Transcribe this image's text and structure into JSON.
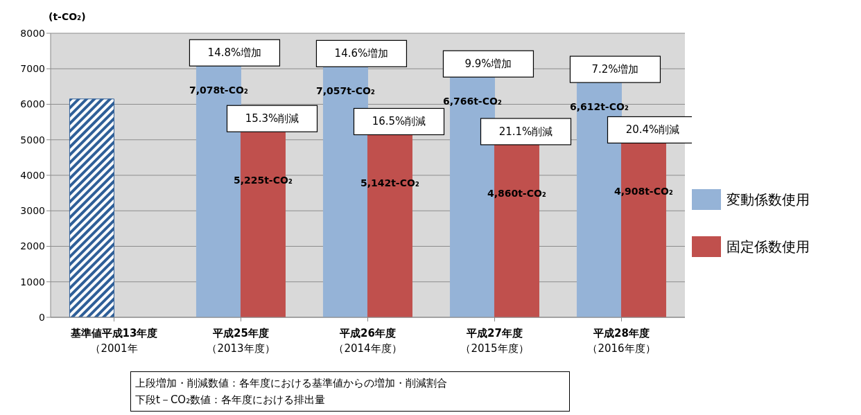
{
  "chart_data": {
    "type": "bar",
    "ylabel": "(t-CO₂)",
    "categories": [
      "基準値平成13年度（2001年",
      "平成25年度（2013年度）",
      "平成26年度（2014年度）",
      "平成27年度（2015年度）",
      "平成28年度（2016年度）"
    ],
    "series": [
      {
        "color": "#2f5f98",
        "values": [
          6150,
          null,
          null,
          null,
          null
        ]
      },
      {
        "name": "変動係数使用",
        "color": "#95b3d7",
        "values": [
          null,
          7078,
          7057,
          6766,
          6612
        ],
        "value_labels": [
          null,
          "7,078t-CO₂",
          "7,057t-CO₂",
          "6,766t-CO₂",
          "6,612t-CO₂"
        ]
      },
      {
        "name": "固定係数使用",
        "color": "#c0504d",
        "values": [
          null,
          5225,
          5142,
          4860,
          4908
        ],
        "value_labels": [
          null,
          "5,225t-CO₂",
          "5,142t-CO₂",
          "4,860t-CO₂",
          "4,908t-CO₂"
        ]
      }
    ],
    "ylim": [
      0,
      8000
    ],
    "yticks": [
      0,
      1000,
      2000,
      3000,
      4000,
      5000,
      6000,
      7000,
      8000
    ],
    "grid": "y",
    "legend": "right",
    "annotations": [
      {
        "text": "14.8%増加",
        "x": "平成25年度（2013年度）",
        "y": 7078
      },
      {
        "text": "15.3%削減",
        "x": "平成25年度（2013年度）",
        "y": 5225
      },
      {
        "text": "14.6%増加",
        "x": "平成26年度（2014年度）",
        "y": 7057
      },
      {
        "text": "16.5%削減",
        "x": "平成26年度（2014年度）",
        "y": 5142
      },
      {
        "text": "9.9%増加",
        "x": "平成27年度（2015年度）",
        "y": 6766
      },
      {
        "text": "21.1%削減",
        "x": "平成27年度（2015年度）",
        "y": 4860
      },
      {
        "text": "7.2%増加",
        "x": "平成28年度（2016年度）",
        "y": 6612
      },
      {
        "text": "20.4%削減",
        "x": "平成28年度（2016年度）",
        "y": 4908
      },
      "上段増加・削減数値：各年度における基準値からの増加・削減割合下段t－CO₂数値：各年度における排出量"
    ]
  }
}
